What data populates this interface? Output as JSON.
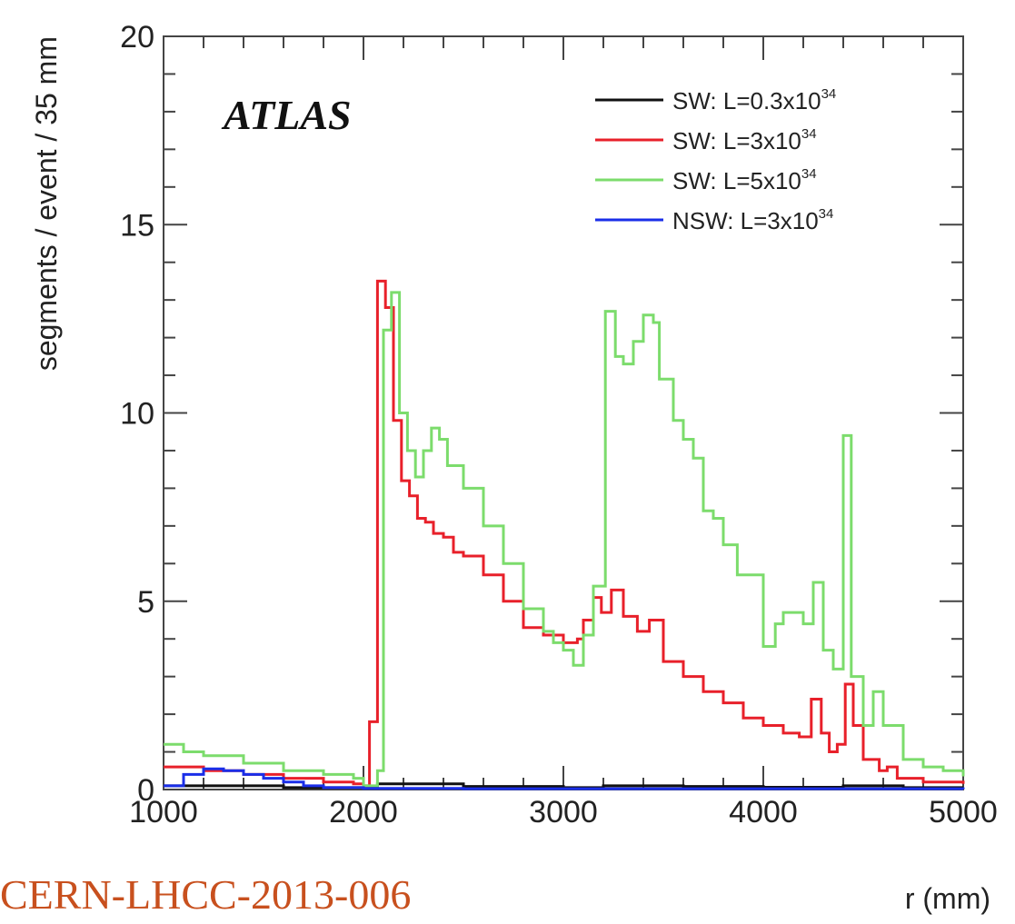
{
  "chart_data": {
    "type": "line",
    "title": "",
    "experiment_label": "ATLAS",
    "xlabel": "r (mm)",
    "ylabel": "segments / event / 35 mm",
    "xlim": [
      1000,
      5000
    ],
    "ylim": [
      0,
      20
    ],
    "x_ticks": [
      "1000",
      "2000",
      "3000",
      "4000",
      "5000"
    ],
    "y_ticks": [
      "0",
      "5",
      "10",
      "15",
      "20"
    ],
    "grid": false,
    "legend_position": "top-right",
    "step_plot": true,
    "series": [
      {
        "name": "SW:   L=0.3x10",
        "name_sup": "34",
        "color": "#111111",
        "points": [
          [
            1000,
            0.1
          ],
          [
            1200,
            0.1
          ],
          [
            1600,
            0.05
          ],
          [
            2000,
            0.05
          ],
          [
            2070,
            0.15
          ],
          [
            2500,
            0.08
          ],
          [
            3000,
            0.05
          ],
          [
            3200,
            0.1
          ],
          [
            3600,
            0.08
          ],
          [
            4000,
            0.06
          ],
          [
            4400,
            0.1
          ],
          [
            4700,
            0.05
          ],
          [
            5000,
            0.05
          ]
        ]
      },
      {
        "name": "SW:   L=3x10",
        "name_sup": "34",
        "color": "#e8202a",
        "points": [
          [
            1000,
            0.6
          ],
          [
            1200,
            0.5
          ],
          [
            1400,
            0.4
          ],
          [
            1600,
            0.3
          ],
          [
            1800,
            0.2
          ],
          [
            1950,
            0.15
          ],
          [
            2000,
            0.1
          ],
          [
            2030,
            1.8
          ],
          [
            2070,
            13.5
          ],
          [
            2110,
            12.8
          ],
          [
            2150,
            9.8
          ],
          [
            2190,
            8.2
          ],
          [
            2230,
            7.8
          ],
          [
            2270,
            7.2
          ],
          [
            2310,
            7.1
          ],
          [
            2350,
            6.8
          ],
          [
            2400,
            6.7
          ],
          [
            2450,
            6.3
          ],
          [
            2500,
            6.2
          ],
          [
            2600,
            5.7
          ],
          [
            2700,
            5.0
          ],
          [
            2800,
            4.3
          ],
          [
            2900,
            4.1
          ],
          [
            3000,
            3.9
          ],
          [
            3070,
            4.0
          ],
          [
            3100,
            4.5
          ],
          [
            3150,
            5.1
          ],
          [
            3190,
            4.7
          ],
          [
            3240,
            5.3
          ],
          [
            3300,
            4.6
          ],
          [
            3370,
            4.2
          ],
          [
            3430,
            4.5
          ],
          [
            3500,
            3.4
          ],
          [
            3600,
            3.0
          ],
          [
            3700,
            2.6
          ],
          [
            3800,
            2.3
          ],
          [
            3900,
            1.9
          ],
          [
            4000,
            1.7
          ],
          [
            4100,
            1.5
          ],
          [
            4180,
            1.4
          ],
          [
            4240,
            2.4
          ],
          [
            4290,
            1.5
          ],
          [
            4330,
            1.0
          ],
          [
            4370,
            1.2
          ],
          [
            4410,
            2.8
          ],
          [
            4450,
            1.7
          ],
          [
            4500,
            0.8
          ],
          [
            4580,
            0.5
          ],
          [
            4620,
            0.6
          ],
          [
            4670,
            0.3
          ],
          [
            4800,
            0.2
          ],
          [
            5000,
            0.15
          ]
        ]
      },
      {
        "name": "SW:   L=5x10",
        "name_sup": "34",
        "color": "#7cdc6c",
        "points": [
          [
            1000,
            1.2
          ],
          [
            1100,
            1.0
          ],
          [
            1200,
            0.9
          ],
          [
            1400,
            0.7
          ],
          [
            1600,
            0.5
          ],
          [
            1800,
            0.4
          ],
          [
            1950,
            0.3
          ],
          [
            2000,
            0.1
          ],
          [
            2070,
            0.5
          ],
          [
            2100,
            12.2
          ],
          [
            2140,
            13.2
          ],
          [
            2180,
            10.0
          ],
          [
            2220,
            9.0
          ],
          [
            2260,
            8.3
          ],
          [
            2300,
            9.0
          ],
          [
            2340,
            9.6
          ],
          [
            2380,
            9.3
          ],
          [
            2420,
            8.6
          ],
          [
            2500,
            8.0
          ],
          [
            2600,
            7.0
          ],
          [
            2700,
            6.0
          ],
          [
            2800,
            4.8
          ],
          [
            2900,
            4.2
          ],
          [
            2950,
            3.9
          ],
          [
            3000,
            3.7
          ],
          [
            3050,
            3.3
          ],
          [
            3100,
            4.1
          ],
          [
            3150,
            5.4
          ],
          [
            3210,
            12.7
          ],
          [
            3260,
            11.5
          ],
          [
            3300,
            11.3
          ],
          [
            3350,
            11.9
          ],
          [
            3400,
            12.6
          ],
          [
            3450,
            12.4
          ],
          [
            3480,
            10.9
          ],
          [
            3550,
            9.8
          ],
          [
            3600,
            9.3
          ],
          [
            3650,
            8.8
          ],
          [
            3700,
            7.4
          ],
          [
            3750,
            7.2
          ],
          [
            3800,
            6.5
          ],
          [
            3870,
            5.7
          ],
          [
            3950,
            5.7
          ],
          [
            4000,
            3.8
          ],
          [
            4060,
            4.4
          ],
          [
            4100,
            4.7
          ],
          [
            4200,
            4.4
          ],
          [
            4250,
            5.5
          ],
          [
            4300,
            3.7
          ],
          [
            4350,
            3.2
          ],
          [
            4400,
            9.4
          ],
          [
            4440,
            3.0
          ],
          [
            4500,
            1.7
          ],
          [
            4550,
            2.6
          ],
          [
            4600,
            1.7
          ],
          [
            4700,
            0.8
          ],
          [
            4800,
            0.6
          ],
          [
            4900,
            0.5
          ],
          [
            5000,
            0.35
          ]
        ]
      },
      {
        "name": "NSW: L=3x10",
        "name_sup": "34",
        "color": "#1a2ee8",
        "points": [
          [
            1000,
            0.1
          ],
          [
            1100,
            0.4
          ],
          [
            1200,
            0.55
          ],
          [
            1300,
            0.5
          ],
          [
            1400,
            0.4
          ],
          [
            1500,
            0.3
          ],
          [
            1600,
            0.2
          ],
          [
            1700,
            0.1
          ],
          [
            1800,
            0.05
          ],
          [
            2000,
            0.03
          ],
          [
            2500,
            0.02
          ],
          [
            3000,
            0.02
          ],
          [
            4000,
            0.02
          ],
          [
            5000,
            0.01
          ]
        ]
      }
    ]
  },
  "source_note": "CERN-LHCC-2013-006"
}
